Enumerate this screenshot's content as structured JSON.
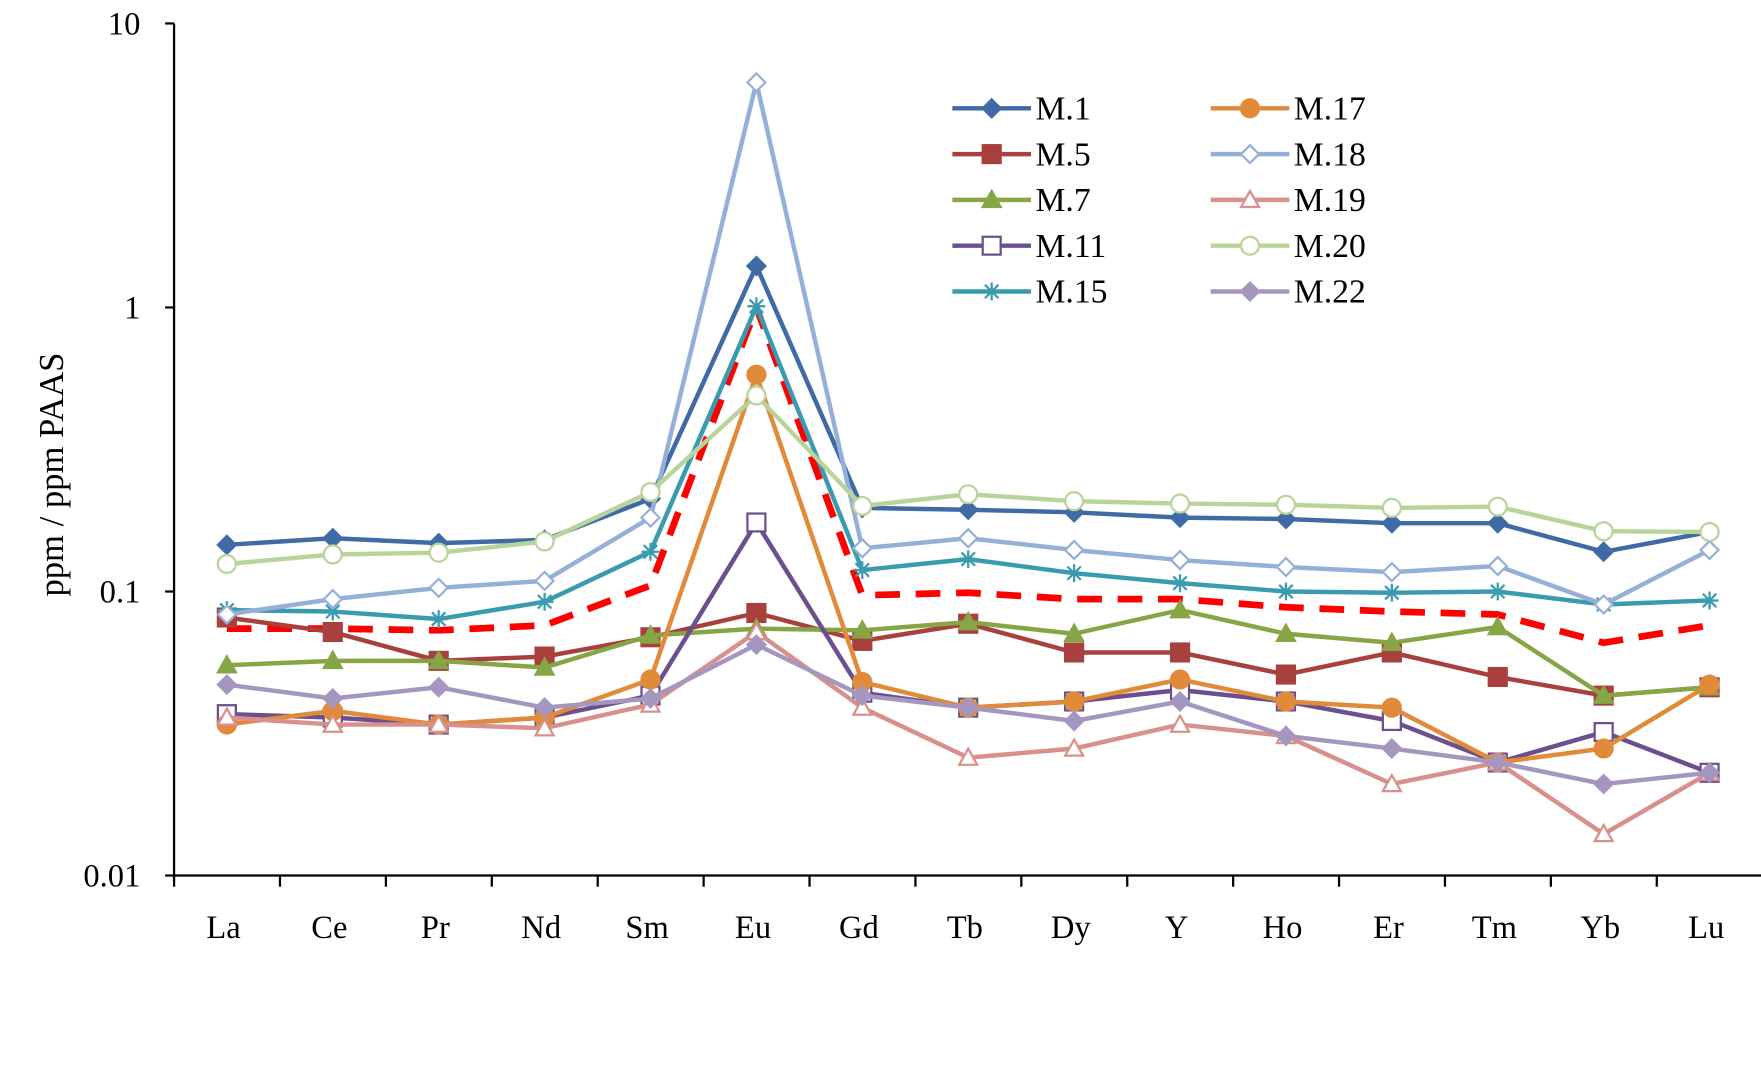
{
  "chart_data": {
    "type": "line",
    "title": "",
    "xlabel": "",
    "ylabel": "ppm / ppm PAAS",
    "yscale": "log",
    "ylim": [
      0.01,
      10
    ],
    "yticks": [
      "0.01",
      "0.1",
      "1",
      "10"
    ],
    "grid": false,
    "legend_position": "top-right",
    "categories": [
      "La",
      "Ce",
      "Pr",
      "Nd",
      "Sm",
      "Eu",
      "Gd",
      "Tb",
      "Dy",
      "Y",
      "Ho",
      "Er",
      "Tm",
      "Yb",
      "Lu"
    ],
    "series": [
      {
        "name": "M.1",
        "color": "#3f6aa5",
        "marker": "diamond-filled",
        "values": [
          0.146,
          0.154,
          0.148,
          0.152,
          0.212,
          1.4,
          0.197,
          0.194,
          0.19,
          0.182,
          0.18,
          0.174,
          0.174,
          0.138,
          0.162
        ]
      },
      {
        "name": "M.5",
        "color": "#a8403e",
        "marker": "square-filled",
        "values": [
          0.081,
          0.072,
          0.057,
          0.059,
          0.069,
          0.084,
          0.067,
          0.077,
          0.061,
          0.061,
          0.051,
          0.061,
          0.05,
          0.043,
          0.046
        ]
      },
      {
        "name": "M.7",
        "color": "#86a544",
        "marker": "triangle-filled",
        "values": [
          0.055,
          0.057,
          0.057,
          0.054,
          0.07,
          0.074,
          0.073,
          0.078,
          0.071,
          0.086,
          0.071,
          0.066,
          0.075,
          0.043,
          0.046
        ]
      },
      {
        "name": "M.11",
        "color": "#6b4f8f",
        "marker": "square-open",
        "values": [
          0.037,
          0.036,
          0.034,
          0.036,
          0.043,
          0.175,
          0.044,
          0.039,
          0.041,
          0.045,
          0.041,
          0.035,
          0.025,
          0.032,
          0.023
        ]
      },
      {
        "name": "M.15",
        "color": "#3a9bb0",
        "marker": "asterisk",
        "values": [
          0.086,
          0.085,
          0.08,
          0.092,
          0.138,
          1.01,
          0.119,
          0.13,
          0.116,
          0.107,
          0.1,
          0.099,
          0.1,
          0.09,
          0.093
        ]
      },
      {
        "name": "M.17",
        "color": "#e08a3a",
        "marker": "circle-filled",
        "values": [
          0.034,
          0.038,
          0.034,
          0.036,
          0.049,
          0.58,
          0.048,
          0.039,
          0.041,
          0.049,
          0.041,
          0.039,
          0.025,
          0.028,
          0.047
        ]
      },
      {
        "name": "M.18",
        "color": "#95b0d8",
        "marker": "diamond-open",
        "values": [
          0.083,
          0.094,
          0.103,
          0.109,
          0.182,
          6.2,
          0.142,
          0.154,
          0.14,
          0.129,
          0.122,
          0.117,
          0.123,
          0.09,
          0.14
        ]
      },
      {
        "name": "M.19",
        "color": "#d9908c",
        "marker": "triangle-open",
        "values": [
          0.036,
          0.034,
          0.034,
          0.033,
          0.04,
          0.072,
          0.039,
          0.026,
          0.028,
          0.034,
          0.031,
          0.021,
          0.025,
          0.014,
          0.023
        ]
      },
      {
        "name": "M.20",
        "color": "#b9d49a",
        "marker": "circle-open",
        "values": [
          0.125,
          0.135,
          0.137,
          0.15,
          0.224,
          0.49,
          0.2,
          0.22,
          0.208,
          0.204,
          0.202,
          0.197,
          0.199,
          0.163,
          0.162
        ]
      },
      {
        "name": "M.22",
        "color": "#a596c0",
        "marker": "diamond-filled",
        "values": [
          0.047,
          0.042,
          0.046,
          0.039,
          0.042,
          0.065,
          0.043,
          0.039,
          0.035,
          0.041,
          0.031,
          0.028,
          0.025,
          0.021,
          0.023
        ]
      },
      {
        "color": "#ff0000",
        "marker": "none",
        "line": "dashed",
        "values": [
          0.074,
          0.074,
          0.073,
          0.076,
          0.105,
          1.0,
          0.097,
          0.099,
          0.094,
          0.094,
          0.088,
          0.085,
          0.083,
          0.066,
          0.076
        ]
      }
    ]
  }
}
